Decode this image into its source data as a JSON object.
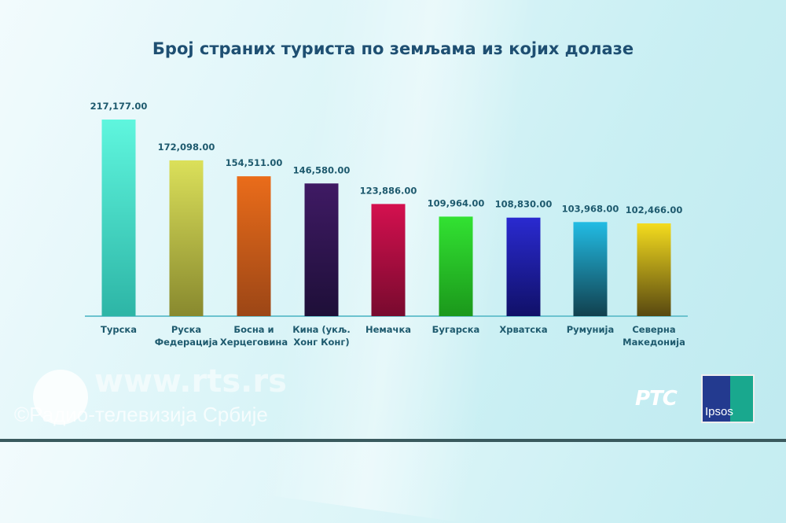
{
  "chart_data": {
    "type": "bar",
    "title": "Број страних туриста по земљама из којих долазе",
    "categories": [
      [
        "Турска"
      ],
      [
        "Руска",
        "Федерација"
      ],
      [
        "Босна и",
        "Херцеговина"
      ],
      [
        "Кина (укљ.",
        "Хонг Конг)"
      ],
      [
        "Немачка"
      ],
      [
        "Бугарска"
      ],
      [
        "Хрватска"
      ],
      [
        "Румунија"
      ],
      [
        "Северна",
        "Македонија"
      ]
    ],
    "values": [
      217177,
      172098,
      154511,
      146580,
      123886,
      109964,
      108830,
      103968,
      102466
    ],
    "data_labels": [
      "217,177.00",
      "172,098.00",
      "154,511.00",
      "146,580.00",
      "123,886.00",
      "109,964.00",
      "108,830.00",
      "103,968.00",
      "102,466.00"
    ],
    "colors": [
      [
        "#5ff6de",
        "#2db5a6"
      ],
      [
        "#dbe05a",
        "#88892e"
      ],
      [
        "#ea6c1a",
        "#9c4616"
      ],
      [
        "#3f1a64",
        "#1e0f38"
      ],
      [
        "#d4104f",
        "#780a2e"
      ],
      [
        "#32e232",
        "#1b981b"
      ],
      [
        "#2a2ad0",
        "#101068"
      ],
      [
        "#22bce4",
        "#11404e"
      ],
      [
        "#f4dc1e",
        "#584810"
      ]
    ],
    "ylim": [
      0,
      217177
    ],
    "grid": false,
    "legend": "none",
    "xlabel": "",
    "ylabel": ""
  },
  "watermark": {
    "url": "www.rts.rs",
    "copyright": "©Радио-телевизија Србије"
  },
  "logos": {
    "broadcaster": "РТС",
    "pollster": "Ipsos"
  }
}
